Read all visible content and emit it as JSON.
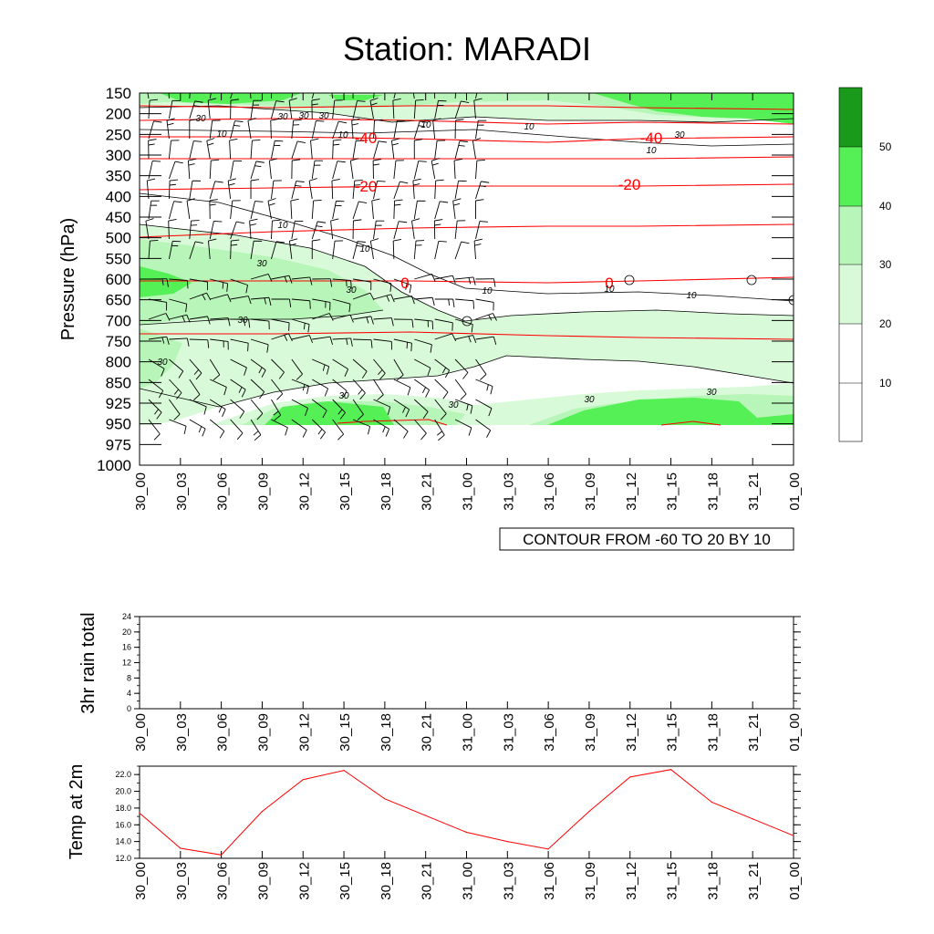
{
  "title": "Station: MARADI",
  "colors": {
    "green_10_20": "#ffffff",
    "green_20_30": "#d9fad9",
    "green_30_40": "#b8f5b8",
    "green_40_50": "#55f055",
    "green_50_plus": "#1a9a1a",
    "temp_line": "#ff0000",
    "contour_line": "#000000"
  },
  "time_labels": [
    "30_00",
    "30_03",
    "30_06",
    "30_09",
    "30_12",
    "30_15",
    "30_18",
    "30_21",
    "31_00",
    "31_03",
    "31_06",
    "31_09",
    "31_12",
    "31_15",
    "31_18",
    "31_21",
    "01_00"
  ],
  "chart_data": [
    {
      "type": "heatmap",
      "name": "cross-section",
      "ylabel": "Pressure (hPa)",
      "pressure_levels": [
        150,
        200,
        250,
        300,
        350,
        400,
        450,
        500,
        550,
        600,
        650,
        700,
        750,
        800,
        850,
        925,
        950,
        975,
        1000
      ],
      "contour_note": "CONTOUR FROM -60 TO 20 BY 10",
      "colorbar_levels": [
        "10",
        "20",
        "30",
        "40",
        "50"
      ],
      "temperature_contour_labels": [
        "-40",
        "-40",
        "-20",
        "-20",
        "0",
        "0"
      ],
      "speed_contour_labels": [
        "30",
        "30",
        "30",
        "30",
        "10",
        "10",
        "10",
        "10",
        "10",
        "10",
        "10",
        "30",
        "30",
        "30",
        "30",
        "30",
        "30",
        "30",
        "30"
      ]
    },
    {
      "type": "bar",
      "name": "rain",
      "ylabel": "3hr rain total",
      "ylim": [
        0,
        24
      ],
      "yticks": [
        "0",
        "4",
        "8",
        "12",
        "16",
        "20",
        "24"
      ],
      "values": [
        0,
        0,
        0,
        0,
        0,
        0,
        0,
        0,
        0,
        0,
        0,
        0,
        0,
        0,
        0,
        0,
        0
      ]
    },
    {
      "type": "line",
      "name": "temp2m",
      "ylabel": "Temp at 2m",
      "ylim": [
        12.0,
        23.0
      ],
      "yticks": [
        "12.0",
        "14.0",
        "16.0",
        "18.0",
        "20.0",
        "22.0"
      ],
      "values": [
        17.4,
        13.2,
        12.4,
        17.6,
        21.4,
        22.5,
        19.1,
        17.1,
        15.1,
        14.0,
        13.1,
        17.6,
        21.7,
        22.6,
        18.7,
        16.7,
        14.7
      ]
    }
  ]
}
